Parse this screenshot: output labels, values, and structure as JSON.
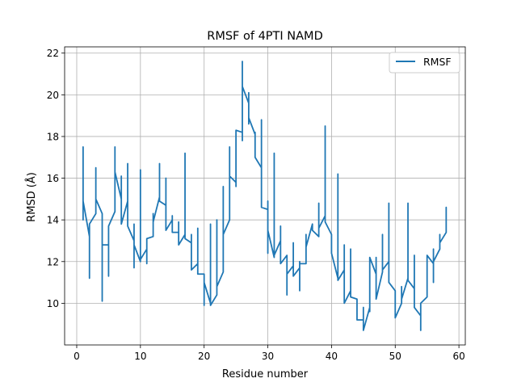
{
  "chart_data": {
    "type": "line",
    "title": "RMSF of 4PTI NAMD",
    "xlabel": "Residue number",
    "ylabel": "RMSD (Å)",
    "xlim": [
      -1.9,
      61.0
    ],
    "ylim": [
      8.0,
      22.3
    ],
    "xticks": [
      0,
      10,
      20,
      30,
      40,
      50,
      60
    ],
    "yticks": [
      10,
      12,
      14,
      16,
      18,
      20,
      22
    ],
    "grid": true,
    "legend_position": "top-right",
    "series": [
      {
        "name": "RMSF",
        "color": "#1f77b4",
        "points": [
          [
            1,
            15.4
          ],
          [
            1,
            17.5
          ],
          [
            1,
            14.0
          ],
          [
            1,
            14.9
          ],
          [
            2,
            13.2
          ],
          [
            2,
            11.2
          ],
          [
            2,
            13.8
          ],
          [
            3,
            14.3
          ],
          [
            3,
            16.5
          ],
          [
            3,
            15.0
          ],
          [
            4,
            14.3
          ],
          [
            4,
            10.1
          ],
          [
            4,
            12.8
          ],
          [
            5,
            12.8
          ],
          [
            5,
            11.3
          ],
          [
            5,
            13.7
          ],
          [
            6,
            14.4
          ],
          [
            6,
            17.5
          ],
          [
            6,
            16.3
          ],
          [
            7,
            15.0
          ],
          [
            7,
            16.1
          ],
          [
            7,
            13.8
          ],
          [
            8,
            14.9
          ],
          [
            8,
            16.7
          ],
          [
            8,
            13.7
          ],
          [
            9,
            13.0
          ],
          [
            9,
            13.8
          ],
          [
            9,
            11.7
          ],
          [
            9,
            12.8
          ],
          [
            10,
            12.0
          ],
          [
            10,
            16.4
          ],
          [
            10,
            12.1
          ],
          [
            11,
            12.6
          ],
          [
            11,
            11.9
          ],
          [
            11,
            13.1
          ],
          [
            12,
            13.2
          ],
          [
            12,
            14.3
          ],
          [
            12,
            13.9
          ],
          [
            13,
            15.1
          ],
          [
            13,
            16.7
          ],
          [
            13,
            14.9
          ],
          [
            14,
            14.7
          ],
          [
            14,
            16.0
          ],
          [
            14,
            13.5
          ],
          [
            15,
            14.0
          ],
          [
            15,
            14.2
          ],
          [
            15,
            13.4
          ],
          [
            16,
            13.4
          ],
          [
            16,
            13.9
          ],
          [
            16,
            12.8
          ],
          [
            17,
            13.3
          ],
          [
            17,
            17.2
          ],
          [
            17,
            13.1
          ],
          [
            18,
            12.9
          ],
          [
            18,
            13.3
          ],
          [
            18,
            11.6
          ],
          [
            19,
            11.9
          ],
          [
            19,
            13.6
          ],
          [
            19,
            11.4
          ],
          [
            20,
            11.4
          ],
          [
            20,
            9.9
          ],
          [
            20,
            11.0
          ],
          [
            21,
            10.0
          ],
          [
            21,
            13.8
          ],
          [
            21,
            9.9
          ],
          [
            22,
            10.4
          ],
          [
            22,
            14.0
          ],
          [
            22,
            10.8
          ],
          [
            23,
            11.5
          ],
          [
            23,
            15.6
          ],
          [
            23,
            13.3
          ],
          [
            24,
            14.0
          ],
          [
            24,
            17.5
          ],
          [
            24,
            16.1
          ],
          [
            25,
            15.8
          ],
          [
            25,
            15.6
          ],
          [
            25,
            18.3
          ],
          [
            26,
            18.2
          ],
          [
            26,
            21.6
          ],
          [
            26,
            17.8
          ],
          [
            26,
            20.4
          ],
          [
            27,
            19.6
          ],
          [
            27,
            20.1
          ],
          [
            27,
            18.6
          ],
          [
            27,
            18.9
          ],
          [
            28,
            18.1
          ],
          [
            28,
            18.2
          ],
          [
            28,
            17.0
          ],
          [
            29,
            16.5
          ],
          [
            29,
            18.8
          ],
          [
            29,
            14.6
          ],
          [
            30,
            14.5
          ],
          [
            30,
            14.9
          ],
          [
            30,
            12.4
          ],
          [
            30,
            13.5
          ],
          [
            31,
            12.2
          ],
          [
            31,
            17.2
          ],
          [
            31,
            12.3
          ],
          [
            32,
            13.0
          ],
          [
            32,
            13.7
          ],
          [
            32,
            11.9
          ],
          [
            33,
            12.3
          ],
          [
            33,
            10.4
          ],
          [
            33,
            11.4
          ],
          [
            34,
            11.8
          ],
          [
            34,
            12.9
          ],
          [
            34,
            11.3
          ],
          [
            35,
            11.7
          ],
          [
            35,
            12.0
          ],
          [
            35,
            10.6
          ],
          [
            35,
            11.9
          ],
          [
            36,
            11.9
          ],
          [
            36,
            13.3
          ],
          [
            36,
            12.7
          ],
          [
            37,
            13.8
          ],
          [
            37,
            13.5
          ],
          [
            38,
            13.2
          ],
          [
            38,
            14.8
          ],
          [
            38,
            13.6
          ],
          [
            39,
            14.2
          ],
          [
            39,
            18.5
          ],
          [
            39,
            13.9
          ],
          [
            40,
            13.3
          ],
          [
            40,
            12.4
          ],
          [
            41,
            11.2
          ],
          [
            41,
            16.2
          ],
          [
            41,
            11.1
          ],
          [
            42,
            11.6
          ],
          [
            42,
            12.8
          ],
          [
            42,
            10.0
          ],
          [
            43,
            10.6
          ],
          [
            43,
            12.6
          ],
          [
            43,
            10.3
          ],
          [
            44,
            10.2
          ],
          [
            44,
            9.2
          ],
          [
            45,
            9.2
          ],
          [
            45,
            9.8
          ],
          [
            45,
            8.7
          ],
          [
            46,
            9.8
          ],
          [
            46,
            9.6
          ],
          [
            46,
            12.2
          ],
          [
            47,
            11.4
          ],
          [
            47,
            12.2
          ],
          [
            47,
            10.2
          ],
          [
            48,
            11.5
          ],
          [
            48,
            13.3
          ],
          [
            48,
            11.6
          ],
          [
            49,
            12.0
          ],
          [
            49,
            14.8
          ],
          [
            49,
            11.0
          ],
          [
            50,
            10.6
          ],
          [
            50,
            9.3
          ],
          [
            51,
            10.0
          ],
          [
            51,
            10.8
          ],
          [
            51,
            10.2
          ],
          [
            52,
            11.2
          ],
          [
            52,
            14.8
          ],
          [
            52,
            11.1
          ],
          [
            53,
            10.7
          ],
          [
            53,
            12.3
          ],
          [
            53,
            9.8
          ],
          [
            54,
            9.4
          ],
          [
            54,
            8.7
          ],
          [
            54,
            10.0
          ],
          [
            55,
            10.3
          ],
          [
            55,
            12.3
          ],
          [
            56,
            11.9
          ],
          [
            56,
            12.6
          ],
          [
            56,
            11.0
          ],
          [
            56,
            12.0
          ],
          [
            57,
            12.6
          ],
          [
            57,
            13.3
          ],
          [
            57,
            12.9
          ],
          [
            58,
            13.4
          ],
          [
            58,
            14.6
          ],
          [
            58,
            14.1
          ]
        ]
      }
    ]
  }
}
